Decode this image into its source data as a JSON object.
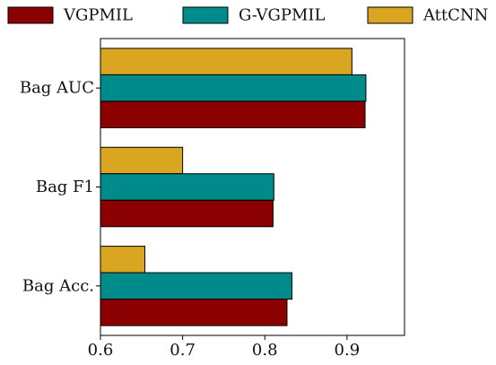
{
  "chart_data": {
    "type": "bar",
    "orientation": "horizontal",
    "title": "",
    "xlabel": "",
    "ylabel": "",
    "categories": [
      "Bag AUC",
      "Bag F1",
      "Bag Acc."
    ],
    "series": [
      {
        "name": "VGPMIL",
        "color": "#8B0000",
        "values": [
          0.922,
          0.81,
          0.827
        ]
      },
      {
        "name": "G-VGPMIL",
        "color": "#008B8B",
        "values": [
          0.923,
          0.811,
          0.833
        ]
      },
      {
        "name": "AttCNN",
        "color": "#DAA520",
        "values": [
          0.906,
          0.7,
          0.654
        ]
      }
    ],
    "xlim": [
      0.6,
      0.97
    ],
    "xticks": [
      0.6,
      0.7,
      0.8,
      0.9
    ],
    "xtick_labels": [
      "0.6",
      "0.7",
      "0.8",
      "0.9"
    ],
    "grid": false,
    "legend_position": "top"
  }
}
